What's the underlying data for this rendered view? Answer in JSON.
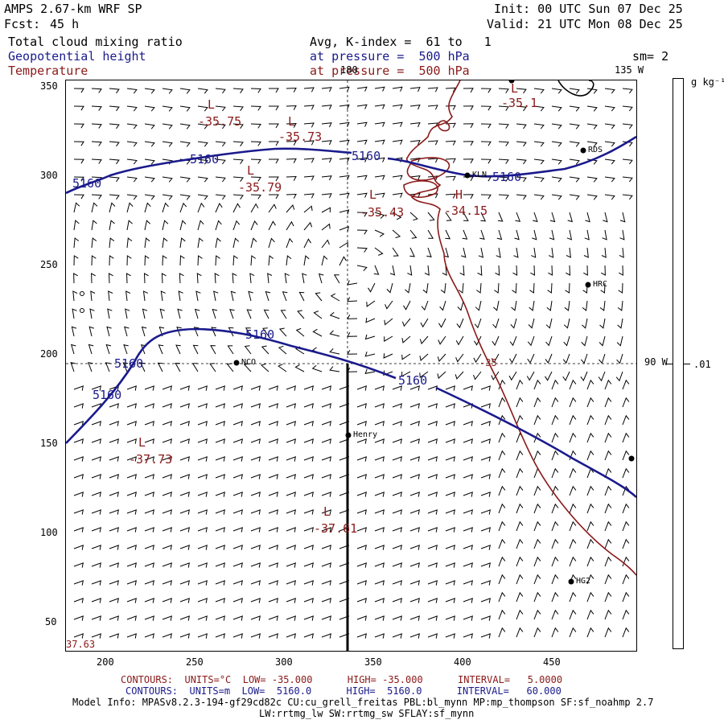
{
  "header": {
    "model": "AMPS 2.67-km WRF SP",
    "fcst_label": "Fcst:",
    "fcst_value": "45 h",
    "init": "Init: 00 UTC Sun 07 Dec 25",
    "valid": "Valid: 21 UTC Mon 08 Dec 25",
    "field1": "Total cloud mixing ratio",
    "field2": "Geopotential height",
    "field3": "Temperature",
    "avg_k_index": "Avg, K-index =  61 to   1",
    "pressure1": "at pressure =  500 hPa",
    "pressure2": "at pressure =  500 hPa",
    "sm": "sm= 2"
  },
  "map": {
    "lon_180": "180",
    "lon_135w": "135 W",
    "lon_90w": "90 W",
    "x_ticks": [
      "200",
      "250",
      "300",
      "350",
      "400",
      "450"
    ],
    "y_ticks": [
      "350",
      "300",
      "250",
      "200",
      "150",
      "100",
      "50"
    ],
    "corner_label": "37.63",
    "height_labels": [
      "5160",
      "5160",
      "5160",
      "5160",
      "5160",
      "5160",
      "5160",
      "5160"
    ],
    "temp_labels": [
      {
        "letter": "L",
        "value": "-35.75"
      },
      {
        "letter": "L",
        "value": "-35.73"
      },
      {
        "letter": "L",
        "value": "-35.79"
      },
      {
        "letter": "L",
        "value": "-35.43"
      },
      {
        "letter": "H",
        "value": "-34.15"
      },
      {
        "letter": "L",
        "value": "-35.1"
      },
      {
        "letter": "L",
        "value": "-37.73"
      },
      {
        "letter": "L",
        "value": "-37.61"
      }
    ],
    "contour_35": "-35",
    "stations": [
      "RDS",
      "KLN",
      "HRC",
      "NCO",
      "Henry",
      "HG2"
    ]
  },
  "colorbar": {
    "units": "g kg⁻¹",
    "value": ".01"
  },
  "footer": {
    "temp_contours": "CONTOURS:  UNITS=°C  LOW= -35.000      HIGH= -35.000      INTERVAL=   5.0000",
    "height_contours": "CONTOURS:  UNITS=m  LOW=  5160.0      HIGH=  5160.0      INTERVAL=   60.000",
    "model_info": "Model Info: MPASv8.2.3-194-gf29cd82c CU:cu_grell_freitas PBL:bl_mynn MP:mp_thompson SF:sf_noahmp 2.7",
    "model_info2": "LW:rrtmg_lw SW:rrtmg_sw SFLAY:sf_mynn"
  },
  "colors": {
    "height": "#1a1a8c",
    "temperature": "#8b1a1a",
    "text": "#000000"
  }
}
